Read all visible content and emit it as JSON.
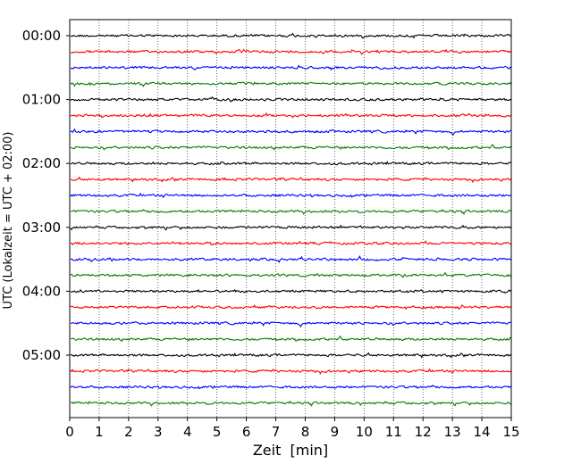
{
  "chart_data": {
    "type": "line",
    "title": "",
    "xlabel": "Zeit  [min]",
    "ylabel": "UTC (Lokalzeit = UTC + 02:00)",
    "xlim": [
      0,
      15
    ],
    "x_ticks": [
      "0",
      "1",
      "2",
      "3",
      "4",
      "5",
      "6",
      "7",
      "8",
      "9",
      "10",
      "11",
      "12",
      "13",
      "14",
      "15"
    ],
    "y_tick_labels": [
      {
        "label": "00:00",
        "trace": 0
      },
      {
        "label": "01:00",
        "trace": 4
      },
      {
        "label": "02:00",
        "trace": 8
      },
      {
        "label": "03:00",
        "trace": 12
      },
      {
        "label": "04:00",
        "trace": 16
      },
      {
        "label": "05:00",
        "trace": 20
      }
    ],
    "trace_interval_min": 15,
    "trace_count": 24,
    "trace_colors": [
      "#000000",
      "#ff0000",
      "#0000ff",
      "#008000"
    ],
    "vertical_grid": "dotted",
    "legend": "none"
  }
}
